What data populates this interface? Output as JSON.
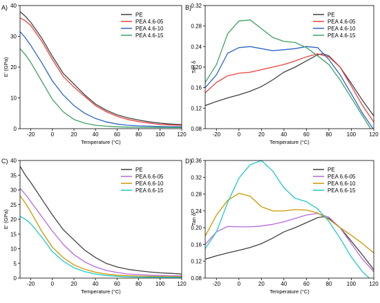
{
  "chart_data": [
    {
      "panel": "A)",
      "type": "line",
      "xlabel": "Temperature (°C)",
      "ylabel": "E' (GPa)",
      "xlim": [
        -30,
        120
      ],
      "ylim": [
        0,
        40
      ],
      "xticks": [
        -20,
        0,
        20,
        40,
        60,
        80,
        100,
        120
      ],
      "yticks": [
        0,
        10,
        20,
        30,
        40
      ],
      "grid": false,
      "legend": "top-right",
      "series": [
        {
          "name": "PE",
          "color": "#404040",
          "x": [
            -30,
            -25,
            -20,
            -10,
            0,
            10,
            20,
            30,
            40,
            50,
            60,
            70,
            80,
            90,
            100,
            110,
            120
          ],
          "y": [
            38,
            36.5,
            34.5,
            29.5,
            23.5,
            18,
            14.5,
            11,
            8,
            6,
            4.5,
            3.5,
            2.8,
            2.2,
            1.8,
            1.5,
            1.3
          ]
        },
        {
          "name": "PEA 4.6-05",
          "color": "#e8413c",
          "x": [
            -30,
            -25,
            -20,
            -10,
            0,
            10,
            20,
            30,
            40,
            50,
            60,
            70,
            80,
            90,
            100,
            110,
            120
          ],
          "y": [
            36,
            35,
            33.5,
            28.5,
            22.5,
            17,
            13.5,
            10.5,
            7.5,
            5.5,
            4,
            3,
            2.3,
            1.8,
            1.4,
            1.2,
            1.1
          ]
        },
        {
          "name": "PEA 4.6-10",
          "color": "#2a64c8",
          "x": [
            -30,
            -25,
            -20,
            -10,
            0,
            10,
            20,
            30,
            40,
            50,
            60,
            70,
            80,
            90,
            100,
            110,
            120
          ],
          "y": [
            31.5,
            29.5,
            27,
            21.5,
            15.5,
            11,
            7.5,
            5,
            3.3,
            2.2,
            1.5,
            1.1,
            0.9,
            0.8,
            0.7,
            0.65,
            0.6
          ]
        },
        {
          "name": "PEA 4.6-15",
          "color": "#3ea064",
          "x": [
            -30,
            -25,
            -20,
            -10,
            0,
            10,
            20,
            30,
            40,
            50,
            60,
            70,
            80,
            90,
            100,
            110,
            120
          ],
          "y": [
            26,
            24,
            21.5,
            15.5,
            9.5,
            5.5,
            3,
            1.8,
            1.1,
            0.8,
            0.6,
            0.5,
            0.45,
            0.4,
            0.4,
            0.35,
            0.35
          ]
        }
      ]
    },
    {
      "panel": "B)",
      "type": "line",
      "xlabel": "Temperature (°C)",
      "ylabel": "Tan δ",
      "xlim": [
        -30,
        120
      ],
      "ylim": [
        0.08,
        0.32
      ],
      "xticks": [
        -20,
        0,
        20,
        40,
        60,
        80,
        100,
        120
      ],
      "yticks": [
        0.08,
        0.12,
        0.16,
        0.2,
        0.24,
        0.28,
        0.32
      ],
      "grid": false,
      "legend": "top-right",
      "series": [
        {
          "name": "PE",
          "color": "#404040",
          "x": [
            -30,
            -20,
            -10,
            0,
            10,
            20,
            30,
            40,
            50,
            60,
            70,
            75,
            80,
            90,
            100,
            110,
            120
          ],
          "y": [
            0.125,
            0.133,
            0.14,
            0.146,
            0.153,
            0.162,
            0.175,
            0.19,
            0.2,
            0.212,
            0.224,
            0.226,
            0.222,
            0.2,
            0.168,
            0.135,
            0.105
          ]
        },
        {
          "name": "PEA 4.6-05",
          "color": "#e8413c",
          "x": [
            -30,
            -20,
            -10,
            0,
            10,
            20,
            30,
            40,
            50,
            60,
            70,
            80,
            90,
            100,
            110,
            120
          ],
          "y": [
            0.15,
            0.17,
            0.183,
            0.188,
            0.19,
            0.195,
            0.2,
            0.205,
            0.212,
            0.22,
            0.226,
            0.22,
            0.2,
            0.163,
            0.125,
            0.093
          ]
        },
        {
          "name": "PEA 4.6-10",
          "color": "#2a64c8",
          "x": [
            -30,
            -20,
            -10,
            0,
            10,
            20,
            30,
            40,
            50,
            60,
            70,
            80,
            90,
            100,
            110,
            120
          ],
          "y": [
            0.16,
            0.185,
            0.227,
            0.238,
            0.24,
            0.236,
            0.232,
            0.234,
            0.236,
            0.24,
            0.238,
            0.215,
            0.185,
            0.148,
            0.11,
            0.078
          ]
        },
        {
          "name": "PEA 4.6-15",
          "color": "#3ea064",
          "x": [
            -30,
            -20,
            -10,
            0,
            10,
            20,
            30,
            40,
            50,
            60,
            70,
            80,
            90,
            100,
            110,
            120
          ],
          "y": [
            0.17,
            0.205,
            0.265,
            0.29,
            0.292,
            0.275,
            0.258,
            0.25,
            0.248,
            0.238,
            0.222,
            0.205,
            0.175,
            0.14,
            0.105,
            0.07
          ]
        }
      ]
    },
    {
      "panel": "C)",
      "type": "line",
      "xlabel": "Temperature (°C)",
      "ylabel": "E' (GPa)",
      "xlim": [
        -30,
        120
      ],
      "ylim": [
        0,
        40
      ],
      "xticks": [
        -20,
        0,
        20,
        40,
        60,
        80,
        100,
        120
      ],
      "yticks": [
        0,
        5,
        10,
        15,
        20,
        25,
        30,
        35,
        40
      ],
      "grid": false,
      "legend": "top-right",
      "series": [
        {
          "name": "PE",
          "color": "#404040",
          "x": [
            -30,
            -25,
            -20,
            -10,
            0,
            10,
            20,
            30,
            40,
            50,
            60,
            70,
            80,
            90,
            100,
            110,
            120
          ],
          "y": [
            38,
            35,
            32.5,
            27,
            21.5,
            16.5,
            13,
            9.5,
            7,
            5,
            3.8,
            3,
            2.5,
            2.1,
            1.8,
            1.6,
            1.4
          ]
        },
        {
          "name": "PEA 6.6-05",
          "color": "#b768d8",
          "x": [
            -30,
            -25,
            -20,
            -10,
            0,
            10,
            20,
            30,
            40,
            50,
            60,
            70,
            80,
            90,
            100,
            110,
            120
          ],
          "y": [
            30.5,
            28.5,
            26,
            21,
            16,
            11.5,
            8,
            5.5,
            3.8,
            2.6,
            1.9,
            1.4,
            1.2,
            1.0,
            0.9,
            0.8,
            0.75
          ]
        },
        {
          "name": "PEA 6.6-10",
          "color": "#c89800",
          "x": [
            -30,
            -25,
            -20,
            -10,
            0,
            10,
            20,
            30,
            40,
            50,
            60,
            70,
            80,
            90,
            100,
            110,
            120
          ],
          "y": [
            28,
            25.5,
            22.5,
            16,
            10.5,
            7,
            4.5,
            3,
            2,
            1.4,
            1.0,
            0.8,
            0.7,
            0.6,
            0.55,
            0.5,
            0.5
          ]
        },
        {
          "name": "PEA 6.6-15",
          "color": "#1fc8c8",
          "x": [
            -30,
            -25,
            -20,
            -10,
            0,
            10,
            20,
            30,
            40,
            50,
            60,
            70,
            80,
            90,
            100,
            110,
            120
          ],
          "y": [
            21,
            20,
            18.5,
            14,
            9,
            5.8,
            3.5,
            2.2,
            1.4,
            0.9,
            0.6,
            0.45,
            0.35,
            0.3,
            0.3,
            0.25,
            0.25
          ]
        }
      ]
    },
    {
      "panel": "D)",
      "type": "line",
      "xlabel": "Temperature (°C)",
      "ylabel": "Tan δ",
      "xlim": [
        -30,
        120
      ],
      "ylim": [
        0.08,
        0.36
      ],
      "xticks": [
        -20,
        0,
        20,
        40,
        60,
        80,
        100,
        120
      ],
      "yticks": [
        0.08,
        0.12,
        0.16,
        0.2,
        0.24,
        0.28,
        0.32,
        0.36
      ],
      "grid": false,
      "legend": "top-right",
      "series": [
        {
          "name": "PE",
          "color": "#404040",
          "x": [
            -30,
            -20,
            -10,
            0,
            10,
            20,
            30,
            40,
            50,
            60,
            70,
            75,
            80,
            90,
            100,
            110,
            120
          ],
          "y": [
            0.125,
            0.133,
            0.14,
            0.146,
            0.153,
            0.162,
            0.175,
            0.19,
            0.2,
            0.212,
            0.224,
            0.226,
            0.222,
            0.2,
            0.168,
            0.135,
            0.1
          ]
        },
        {
          "name": "PEA 6.6-05",
          "color": "#b768d8",
          "x": [
            -30,
            -20,
            -10,
            0,
            10,
            20,
            30,
            40,
            50,
            60,
            70,
            80,
            90,
            100,
            110,
            120
          ],
          "y": [
            0.16,
            0.19,
            0.203,
            0.202,
            0.202,
            0.204,
            0.208,
            0.214,
            0.222,
            0.23,
            0.234,
            0.225,
            0.2,
            0.162,
            0.125,
            0.095
          ]
        },
        {
          "name": "PEA 6.6-10",
          "color": "#c89800",
          "x": [
            -30,
            -20,
            -10,
            0,
            10,
            20,
            30,
            40,
            50,
            60,
            70,
            80,
            90,
            100,
            110,
            120
          ],
          "y": [
            0.18,
            0.23,
            0.265,
            0.282,
            0.275,
            0.25,
            0.24,
            0.24,
            0.243,
            0.242,
            0.235,
            0.22,
            0.2,
            0.182,
            0.162,
            0.14
          ]
        },
        {
          "name": "PEA 6.6-15",
          "color": "#1fc8c8",
          "x": [
            -30,
            -20,
            -10,
            0,
            10,
            20,
            30,
            40,
            50,
            60,
            70,
            80,
            90,
            100,
            110,
            120
          ],
          "y": [
            0.15,
            0.19,
            0.26,
            0.318,
            0.35,
            0.36,
            0.335,
            0.295,
            0.27,
            0.262,
            0.245,
            0.215,
            0.175,
            0.13,
            0.095,
            0.07
          ]
        }
      ]
    }
  ]
}
